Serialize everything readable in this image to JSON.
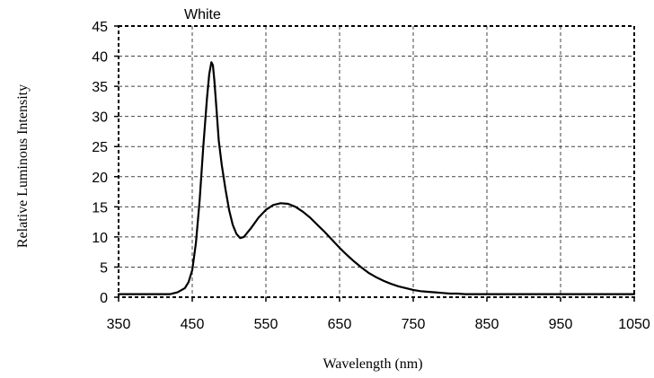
{
  "chart_data": {
    "type": "line",
    "title": "White",
    "xlabel": "Wavelength (nm)",
    "ylabel": "Relative Luminous Intensity",
    "xlim": [
      350,
      1050
    ],
    "ylim": [
      0,
      45
    ],
    "x_ticks": [
      350,
      450,
      550,
      650,
      750,
      850,
      950,
      1050
    ],
    "y_ticks": [
      0,
      5,
      10,
      15,
      20,
      25,
      30,
      35,
      40,
      45
    ],
    "grid": true,
    "series": [
      {
        "color": "#000000",
        "x": [
          350,
          420,
          430,
          440,
          445,
          450,
          455,
          460,
          465,
          470,
          473,
          476,
          478,
          480,
          483,
          486,
          490,
          495,
          500,
          505,
          510,
          515,
          520,
          530,
          540,
          550,
          560,
          570,
          580,
          590,
          600,
          610,
          620,
          630,
          640,
          650,
          660,
          670,
          680,
          690,
          700,
          710,
          720,
          730,
          740,
          750,
          760,
          770,
          780,
          790,
          800,
          810,
          820,
          830,
          840,
          850,
          900,
          1000,
          1050
        ],
        "y": [
          0.5,
          0.5,
          0.8,
          1.5,
          2.5,
          4.5,
          9,
          16,
          25,
          33,
          37,
          39,
          38.5,
          36,
          31,
          26,
          22,
          18,
          14.5,
          12,
          10.5,
          9.8,
          10,
          11.5,
          13.2,
          14.5,
          15.3,
          15.6,
          15.5,
          15,
          14.2,
          13.2,
          12,
          10.8,
          9.5,
          8.2,
          7,
          5.9,
          4.9,
          4,
          3.3,
          2.7,
          2.2,
          1.8,
          1.5,
          1.2,
          1,
          0.9,
          0.8,
          0.7,
          0.6,
          0.6,
          0.5,
          0.5,
          0.5,
          0.5,
          0.5,
          0.5,
          0.5
        ]
      }
    ]
  }
}
